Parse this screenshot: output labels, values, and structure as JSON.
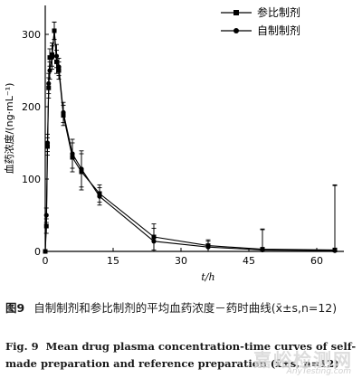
{
  "chart_data": {
    "type": "line",
    "xlabel": "t/h",
    "ylabel": "血药浓度/(ng·mL⁻¹)",
    "xlim": [
      0,
      66
    ],
    "ylim": [
      0,
      340
    ],
    "xticks": [
      0,
      15,
      30,
      45,
      60
    ],
    "yticks": [
      0,
      100,
      200,
      300
    ],
    "grid": false,
    "legend_position": "top-right",
    "series": [
      {
        "name": "参比制剂",
        "marker": "square",
        "x": [
          0,
          0.25,
          0.5,
          0.75,
          1,
          1.5,
          2,
          2.5,
          3,
          4,
          6,
          8,
          12,
          24,
          36,
          48,
          64
        ],
        "y": [
          0,
          35,
          145,
          226,
          268,
          272,
          305,
          262,
          250,
          188,
          130,
          110,
          80,
          20,
          8,
          3,
          2
        ],
        "err": [
          0,
          10,
          12,
          14,
          12,
          16,
          12,
          16,
          12,
          14,
          20,
          25,
          12,
          18,
          8,
          28,
          90
        ]
      },
      {
        "name": "自制制剂",
        "marker": "circle",
        "x": [
          0,
          0.25,
          0.5,
          0.75,
          1,
          1.5,
          2,
          2.5,
          3,
          4,
          6,
          8,
          12,
          24,
          36,
          48,
          64
        ],
        "y": [
          0,
          50,
          150,
          232,
          250,
          268,
          305,
          270,
          255,
          192,
          135,
          114,
          76,
          14,
          6,
          2,
          1
        ],
        "err": [
          0,
          10,
          12,
          14,
          12,
          16,
          12,
          16,
          12,
          14,
          20,
          25,
          12,
          18,
          8,
          28,
          90
        ]
      }
    ]
  },
  "caption": {
    "zh_fig": "图9",
    "zh_text": "自制制剂和参比制剂的平均血药浓度－药时曲线(x̄±s,n=12)",
    "en_fig": "Fig. 9",
    "en_text": "Mean drug plasma concentration-time curves of self-made preparation and reference preparation (x̄±s, n=12)"
  },
  "watermark": {
    "text": "嘉峪检测网",
    "url": "AnyTesting.com"
  }
}
